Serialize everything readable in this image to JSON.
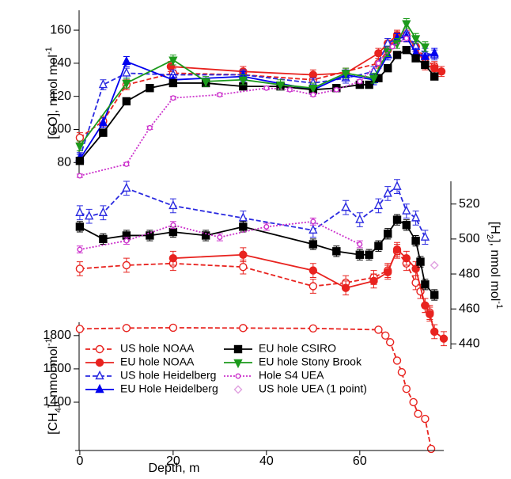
{
  "chart_data": [
    {
      "type": "line",
      "y_side": "left",
      "y_label": [
        {
          "text": "[CO], nmol mol"
        },
        {
          "text": "-1",
          "sup": true
        }
      ],
      "ylim": [
        72,
        172
      ],
      "yticks": [
        80,
        100,
        120,
        140,
        160
      ],
      "series": [
        {
          "name": "US hole NOAA",
          "error": 3,
          "x": [
            0,
            5,
            10,
            20,
            35,
            50,
            64,
            66,
            68,
            70,
            72,
            74,
            76
          ],
          "values": [
            95,
            105,
            127,
            134,
            133,
            130,
            140,
            148,
            156,
            157,
            150,
            143,
            138
          ]
        },
        {
          "name": "EU hole NOAA",
          "error": 3,
          "x": [
            19.5,
            35,
            50,
            57,
            64,
            66,
            68,
            70,
            72,
            74,
            76,
            77.5
          ],
          "values": [
            138,
            135,
            133,
            134,
            146,
            152,
            157,
            156,
            150,
            139,
            137,
            135
          ]
        },
        {
          "name": "US hole Heidelberg",
          "error": 3,
          "x": [
            0,
            5,
            10,
            20,
            35,
            50,
            57,
            63,
            66,
            68,
            70,
            72,
            74,
            76
          ],
          "values": [
            83,
            127,
            134,
            133,
            133,
            128,
            131,
            135,
            152,
            155,
            158,
            150,
            146,
            145
          ]
        },
        {
          "name": "EU Hole Heidelberg",
          "error": 3,
          "x": [
            0,
            5,
            10,
            20,
            35,
            50,
            57,
            63,
            66,
            68,
            70,
            72,
            74,
            76
          ],
          "values": [
            82,
            104,
            141,
            130,
            132,
            124,
            133,
            130,
            145,
            155,
            156,
            146,
            144,
            146
          ]
        },
        {
          "name": "EU hole CSIRO",
          "error": 2,
          "x": [
            0,
            5,
            10,
            15,
            20,
            27,
            35,
            43,
            50,
            55,
            60,
            62,
            64,
            66,
            68,
            70,
            72,
            74,
            76
          ],
          "values": [
            81,
            98,
            117,
            125,
            128,
            128,
            126,
            126,
            124,
            125,
            127,
            127,
            131,
            137,
            145,
            148,
            143,
            139,
            132
          ]
        },
        {
          "name": "EU hole Stony Brook",
          "error": 3,
          "x": [
            0,
            10,
            20,
            27,
            35,
            43,
            50,
            57,
            63,
            66,
            68,
            70,
            72,
            74
          ],
          "values": [
            90,
            128,
            142,
            129,
            130,
            127,
            125,
            134,
            131,
            147,
            152,
            164,
            155,
            150
          ]
        },
        {
          "name": "Hole S4 UEA",
          "error": 1,
          "x": [
            0,
            10,
            15,
            20,
            30,
            40,
            45,
            50,
            55,
            60,
            64,
            67,
            70
          ],
          "values": [
            72,
            79,
            101,
            119,
            121,
            125,
            124,
            121,
            124,
            129,
            140,
            150,
            155
          ]
        }
      ]
    },
    {
      "type": "line",
      "y_side": "right",
      "y_label": [
        {
          "text": "[H"
        },
        {
          "text": "2",
          "sub": true
        },
        {
          "text": "], nmol mol"
        },
        {
          "text": "-1",
          "sup": true
        }
      ],
      "ylim": [
        437,
        533
      ],
      "yticks": [
        440,
        460,
        480,
        500,
        520
      ],
      "series": [
        {
          "name": "US hole NOAA",
          "error": 4,
          "x": [
            0,
            10,
            20,
            35,
            50,
            57,
            63,
            66,
            68,
            70,
            72,
            73,
            74,
            75
          ],
          "values": [
            483,
            485,
            486,
            484,
            473,
            475,
            478,
            482,
            493,
            486,
            475,
            470,
            462,
            458
          ]
        },
        {
          "name": "EU hole NOAA",
          "error": 4,
          "x": [
            20,
            35,
            50,
            57,
            63,
            66,
            68,
            70,
            72,
            74,
            75,
            76,
            78
          ],
          "values": [
            489,
            491,
            482,
            472,
            476,
            481,
            494,
            489,
            483,
            462,
            457,
            447,
            443
          ]
        },
        {
          "name": "US hole Heidelberg",
          "error": 4,
          "x": [
            0,
            2,
            5,
            10,
            20,
            35,
            50,
            57,
            60,
            64,
            66,
            68,
            70,
            72,
            74
          ],
          "values": [
            515,
            513,
            515,
            529,
            519,
            512,
            505,
            518,
            511,
            519,
            526,
            530,
            516,
            512,
            501
          ]
        },
        {
          "name": "EU hole CSIRO",
          "error": 3,
          "x": [
            0,
            5,
            10,
            15,
            20,
            27,
            35,
            50,
            55,
            60,
            62,
            64,
            66,
            68,
            70,
            72,
            73,
            74,
            76
          ],
          "values": [
            507,
            500,
            502,
            502,
            504,
            502,
            507,
            497,
            493,
            491,
            491,
            496,
            503,
            511,
            508,
            499,
            487,
            474,
            468
          ]
        },
        {
          "name": "Hole S4 UEA",
          "error": 2,
          "x": [
            0,
            10,
            20,
            30,
            40,
            50,
            60
          ],
          "values": [
            494,
            499,
            508,
            501,
            507,
            510,
            497
          ]
        },
        {
          "name": "US hole UEA (1 point)",
          "x": [
            76
          ],
          "values": [
            485
          ]
        }
      ]
    },
    {
      "type": "line",
      "y_side": "left",
      "y_label": [
        {
          "text": "[CH"
        },
        {
          "text": "4",
          "sub": true
        },
        {
          "text": "], nmol mol"
        },
        {
          "text": "-1",
          "sup": true
        }
      ],
      "ylim": [
        1110,
        1880
      ],
      "yticks": [
        1400,
        1600,
        1800
      ],
      "xlim": [
        -1,
        78
      ],
      "xticks": [
        0,
        20,
        40,
        60
      ],
      "x_label": "Depth, m",
      "series": [
        {
          "name": "US hole NOAA",
          "x": [
            0,
            10,
            20,
            35,
            50,
            64,
            65.5,
            66.5,
            68,
            69,
            70,
            71.5,
            72.5,
            74,
            75.3
          ],
          "values": [
            1840,
            1845,
            1847,
            1845,
            1843,
            1835,
            1800,
            1760,
            1650,
            1580,
            1480,
            1400,
            1330,
            1300,
            1120
          ]
        }
      ]
    }
  ],
  "legend": [
    {
      "name": "US hole NOAA",
      "color": "#e8231f",
      "marker": "circle",
      "fill": false,
      "line": "dashed"
    },
    {
      "name": "EU hole NOAA",
      "color": "#e8231f",
      "marker": "circle",
      "fill": true,
      "line": "solid"
    },
    {
      "name": "US hole Heidelberg",
      "color": "#2a2ae0",
      "marker": "triangle",
      "fill": false,
      "line": "dashed"
    },
    {
      "name": "EU Hole Heidelberg",
      "color": "#0000ee",
      "marker": "triangle",
      "fill": true,
      "line": "solid"
    },
    {
      "name": "EU hole CSIRO",
      "color": "#000000",
      "marker": "square",
      "fill": true,
      "line": "solid"
    },
    {
      "name": "EU hole Stony Brook",
      "color": "#1c9a1c",
      "marker": "triangle-down",
      "fill": true,
      "line": "solid"
    },
    {
      "name": "Hole S4 UEA",
      "color": "#cc33cc",
      "marker": "smallcircle",
      "fill": false,
      "line": "dotted"
    },
    {
      "name": "US hole UEA (1 point)",
      "color": "#e0a0e0",
      "marker": "diamond",
      "fill": false,
      "line": "none"
    }
  ]
}
